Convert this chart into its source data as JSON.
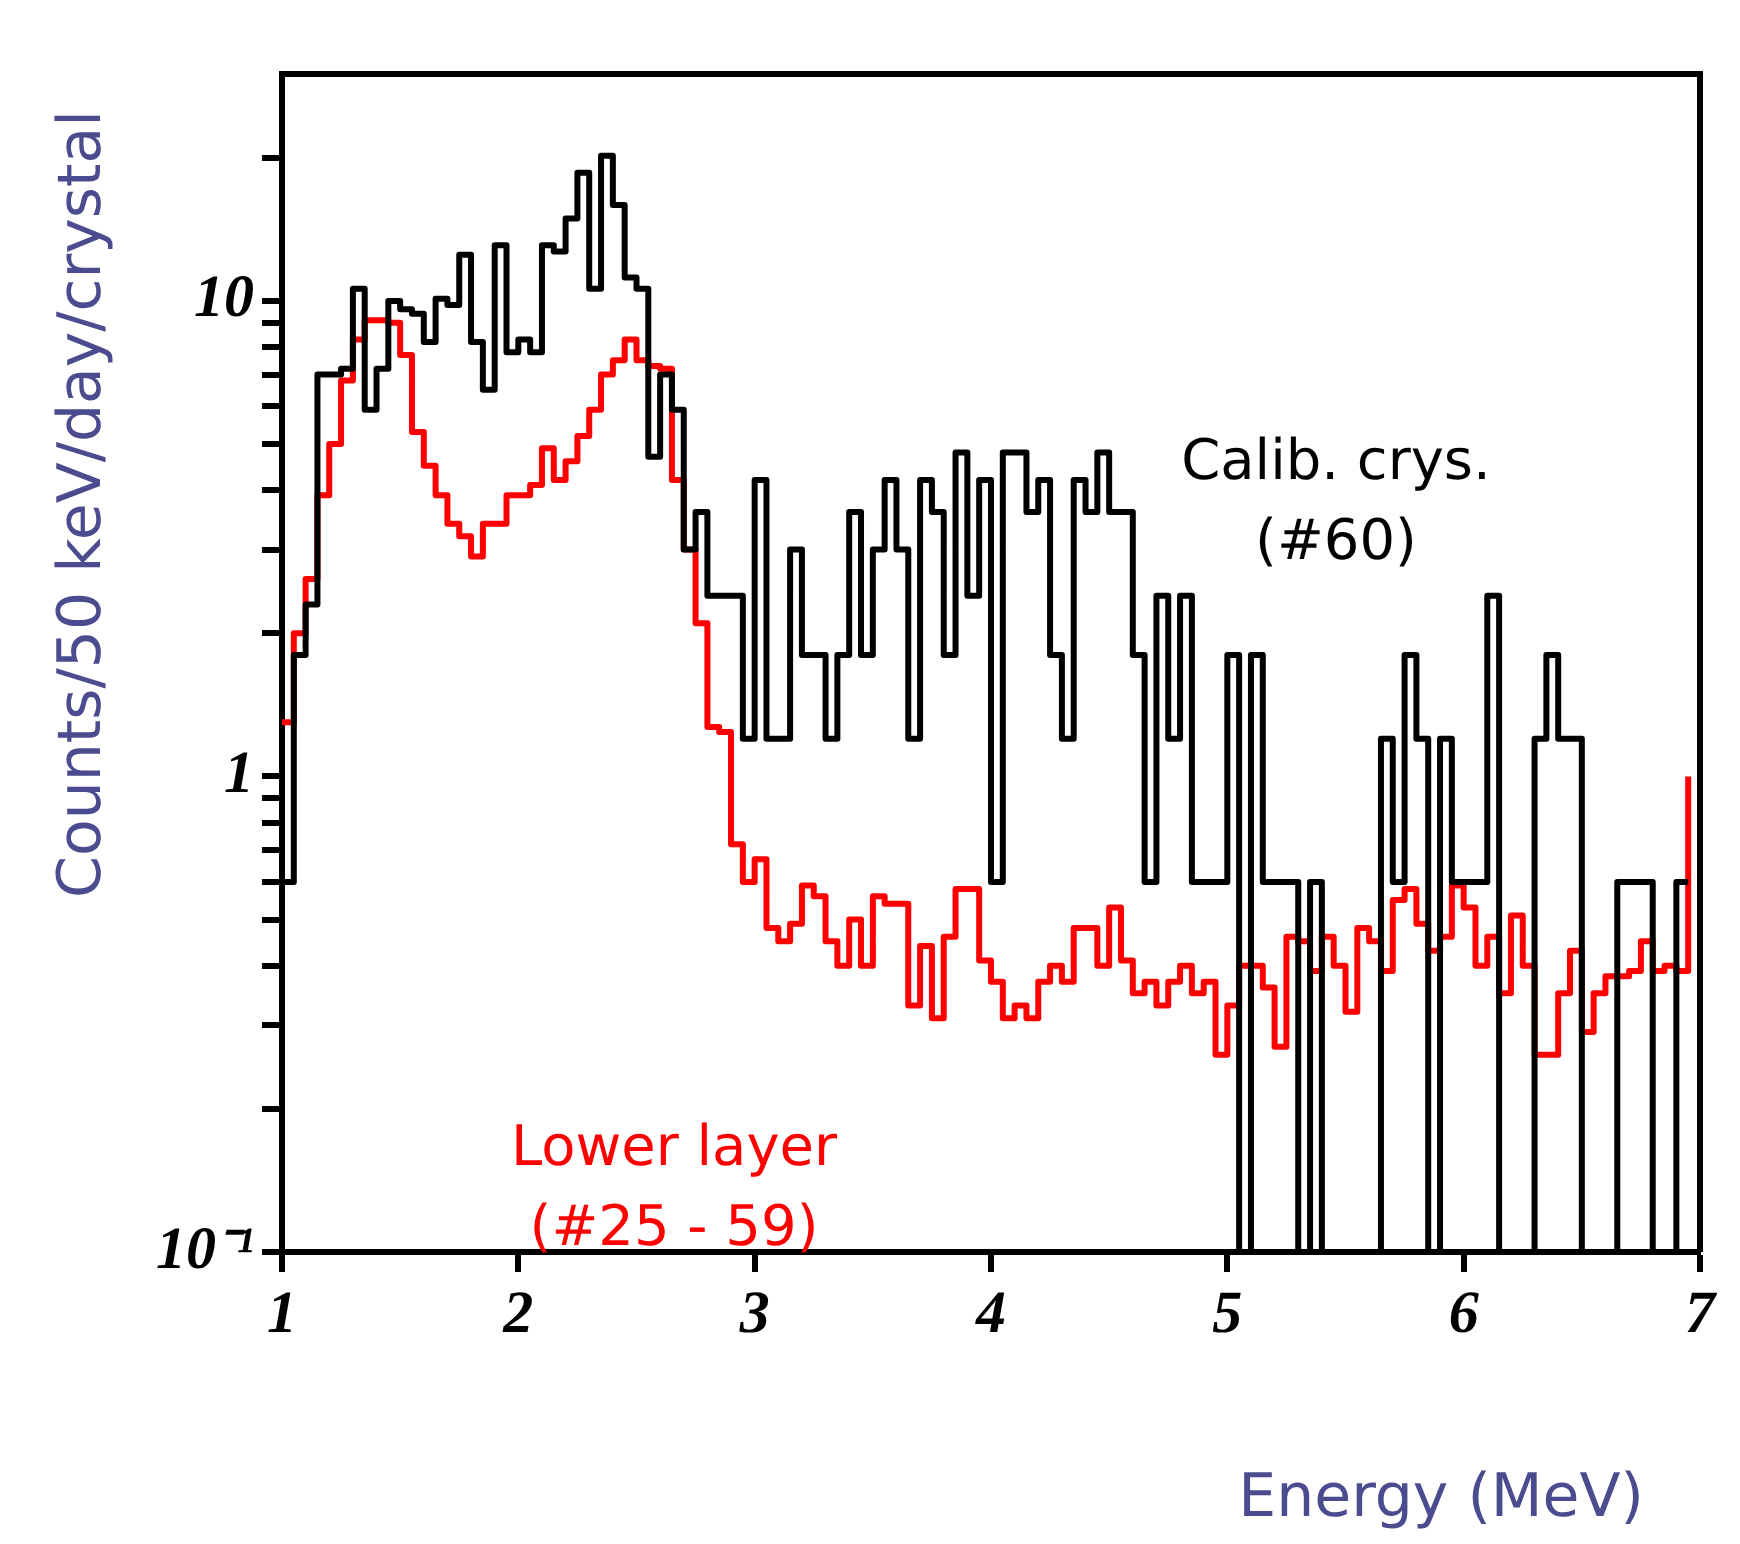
{
  "chart_data": {
    "type": "step",
    "xlabel": "Energy (MeV)",
    "ylabel": "Counts/50 keV/day/crystal",
    "log": true,
    "x": [
      1,
      1.05,
      1.1,
      1.15,
      1.2,
      1.25,
      1.3,
      1.35,
      1.4,
      1.45,
      1.5,
      1.55,
      1.6,
      1.65,
      1.7,
      1.75,
      1.8,
      1.85,
      1.9,
      1.95,
      2,
      2.05,
      2.1,
      2.15,
      2.2,
      2.25,
      2.3,
      2.35,
      2.4,
      2.45,
      2.5,
      2.55,
      2.6,
      2.65,
      2.7,
      2.75,
      2.8,
      2.85,
      2.9,
      2.95,
      3,
      3.05,
      3.1,
      3.15,
      3.2,
      3.25,
      3.3,
      3.35,
      3.4,
      3.45,
      3.5,
      3.55,
      3.6,
      3.65,
      3.7,
      3.75,
      3.8,
      3.85,
      3.9,
      3.95,
      4,
      4.05,
      4.1,
      4.15,
      4.2,
      4.25,
      4.3,
      4.35,
      4.4,
      4.45,
      4.5,
      4.55,
      4.6,
      4.65,
      4.7,
      4.75,
      4.8,
      4.85,
      4.9,
      4.95,
      5,
      5.05,
      5.1,
      5.15,
      5.2,
      5.25,
      5.3,
      5.35,
      5.4,
      5.45,
      5.5,
      5.55,
      5.6,
      5.65,
      5.7,
      5.75,
      5.8,
      5.85,
      5.9,
      5.95,
      6,
      6.05,
      6.1,
      6.15,
      6.2,
      6.25,
      6.3,
      6.35,
      6.4,
      6.45,
      6.5,
      6.55,
      6.6,
      6.65,
      6.7,
      6.75,
      6.8,
      6.85,
      6.9,
      6.95
    ],
    "series": [
      {
        "name": "Calib. crys. (#60)",
        "color": "#000000",
        "values": [
          0.6,
          1.8,
          2.3,
          7.0,
          7.0,
          7.2,
          10.6,
          5.9,
          7.2,
          10.0,
          9.6,
          9.4,
          8.2,
          10.1,
          9.8,
          12.5,
          8.2,
          6.5,
          13.1,
          7.8,
          8.3,
          7.8,
          13.1,
          12.7,
          14.9,
          18.6,
          10.6,
          20.2,
          15.9,
          11.2,
          10.6,
          4.7,
          7.0,
          5.9,
          3.0,
          3.6,
          2.4,
          2.4,
          2.4,
          1.2,
          4.2,
          1.2,
          1.2,
          3.0,
          1.8,
          1.8,
          1.2,
          1.8,
          3.6,
          1.8,
          3.0,
          4.2,
          3.0,
          1.2,
          4.2,
          3.6,
          1.8,
          4.8,
          2.4,
          4.2,
          0.6,
          4.8,
          4.8,
          3.6,
          4.2,
          1.8,
          1.2,
          4.2,
          3.6,
          4.8,
          3.6,
          3.6,
          1.8,
          0.6,
          2.4,
          1.2,
          2.4,
          0.6,
          0.6,
          0.6,
          1.8,
          0.1,
          1.8,
          0.6,
          0.6,
          0.6,
          0.1,
          0.6,
          0.1,
          0.1,
          0.1,
          0.1,
          0.1,
          1.2,
          0.6,
          1.8,
          1.2,
          0.1,
          1.2,
          0.6,
          0.6,
          0.6,
          2.4,
          0.1,
          0.1,
          0.1,
          1.2,
          1.8,
          1.2,
          1.2,
          0.1,
          0.1,
          0.1,
          0.6,
          0.6,
          0.6,
          0.1,
          0.1,
          0.6,
          0.6
        ]
      },
      {
        "name": "Lower layer (#25 - 59)",
        "color": "#ff0000",
        "values": [
          1.3,
          2.0,
          2.6,
          3.9,
          5.0,
          6.8,
          8.3,
          9.1,
          9.1,
          9.0,
          7.7,
          5.3,
          4.5,
          3.9,
          3.4,
          3.2,
          2.9,
          3.4,
          3.4,
          3.9,
          3.9,
          4.1,
          4.9,
          4.2,
          4.6,
          5.2,
          5.9,
          7.0,
          7.5,
          8.3,
          7.5,
          7.3,
          7.2,
          4.2,
          3.0,
          2.1,
          1.27,
          1.24,
          0.72,
          0.6,
          0.67,
          0.48,
          0.45,
          0.49,
          0.59,
          0.56,
          0.45,
          0.4,
          0.5,
          0.4,
          0.56,
          0.54,
          0.54,
          0.33,
          0.44,
          0.31,
          0.46,
          0.58,
          0.58,
          0.41,
          0.37,
          0.31,
          0.33,
          0.31,
          0.37,
          0.4,
          0.37,
          0.48,
          0.48,
          0.4,
          0.53,
          0.41,
          0.35,
          0.37,
          0.33,
          0.37,
          0.4,
          0.35,
          0.37,
          0.26,
          0.33,
          0.4,
          0.4,
          0.36,
          0.27,
          0.46,
          0.45,
          0.39,
          0.46,
          0.4,
          0.32,
          0.48,
          0.45,
          0.39,
          0.55,
          0.58,
          0.49,
          0.43,
          0.46,
          0.59,
          0.53,
          0.4,
          0.46,
          0.35,
          0.51,
          0.4,
          0.26,
          0.26,
          0.35,
          0.43,
          0.29,
          0.35,
          0.38,
          0.38,
          0.39,
          0.45,
          0.39,
          0.4,
          0.39,
          1.0
        ]
      }
    ],
    "xlim": [
      1,
      7
    ],
    "xticks": [
      1,
      2,
      3,
      4,
      5,
      6,
      7
    ],
    "ylim": [
      0.1,
      30
    ],
    "yticks": [
      {
        "value": 0.1,
        "label": "10⁻¹"
      },
      {
        "value": 0.2,
        "label": null
      },
      {
        "value": 0.3,
        "label": null
      },
      {
        "value": 0.4,
        "label": null
      },
      {
        "value": 0.5,
        "label": null
      },
      {
        "value": 0.6,
        "label": null
      },
      {
        "value": 0.7,
        "label": null
      },
      {
        "value": 0.8,
        "label": null
      },
      {
        "value": 0.9,
        "label": null
      },
      1,
      {
        "value": 2,
        "label": null
      },
      {
        "value": 3,
        "label": null
      },
      {
        "value": 4,
        "label": null
      },
      {
        "value": 5,
        "label": null
      },
      {
        "value": 6,
        "label": null
      },
      {
        "value": 7,
        "label": null
      },
      {
        "value": 8,
        "label": null
      },
      {
        "value": 9,
        "label": null
      },
      10,
      {
        "value": 20,
        "label": null
      }
    ]
  }
}
